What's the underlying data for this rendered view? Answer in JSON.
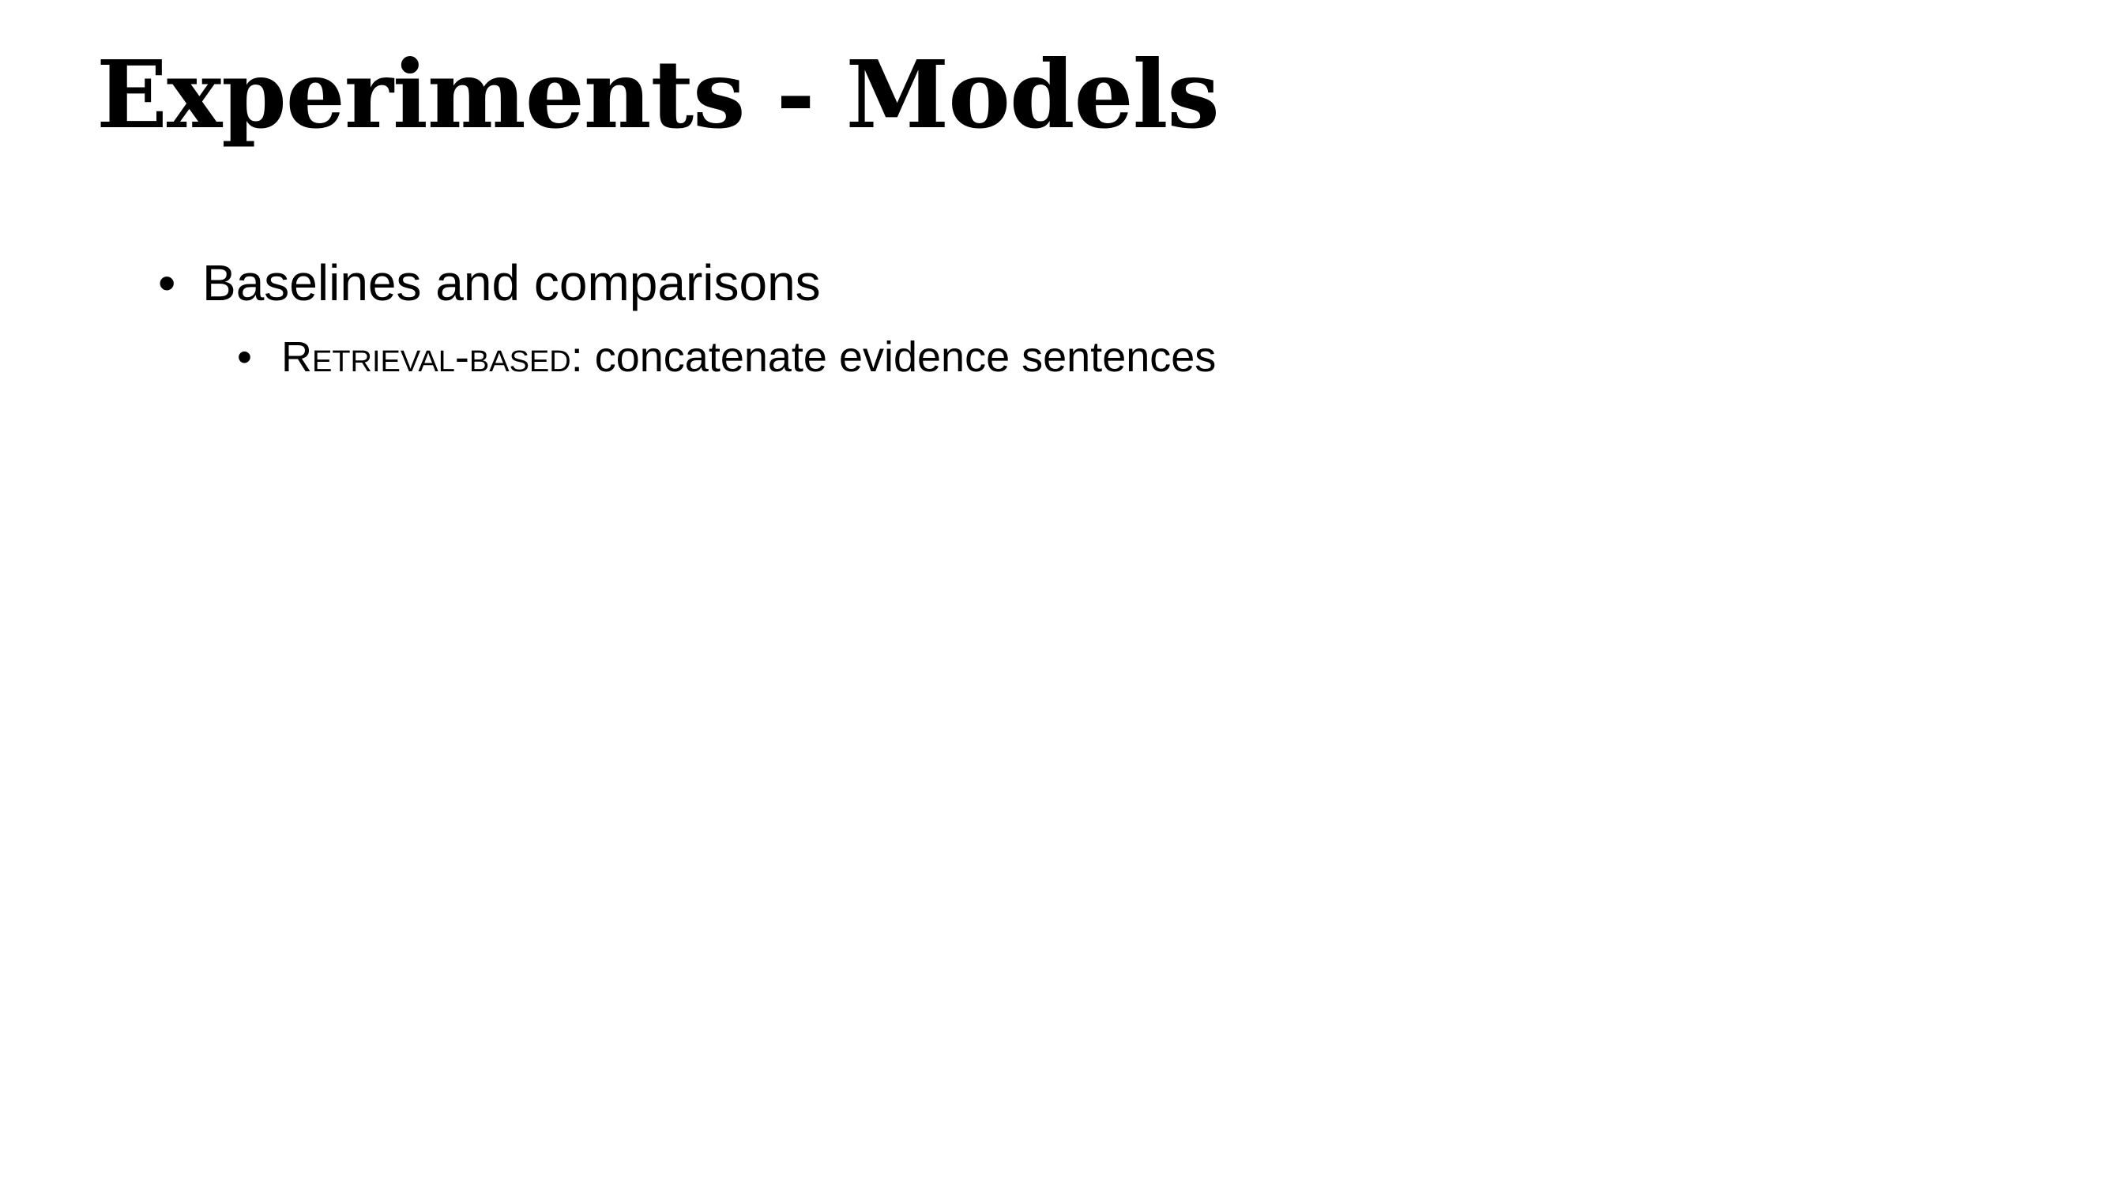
{
  "slide": {
    "title": "Experiments - Models",
    "bullets": [
      {
        "marker": "•",
        "text": "Baselines and comparisons",
        "children": [
          {
            "marker": "•",
            "term": "Retrieval-based",
            "text": ": concatenate evidence sentences"
          }
        ]
      }
    ]
  }
}
